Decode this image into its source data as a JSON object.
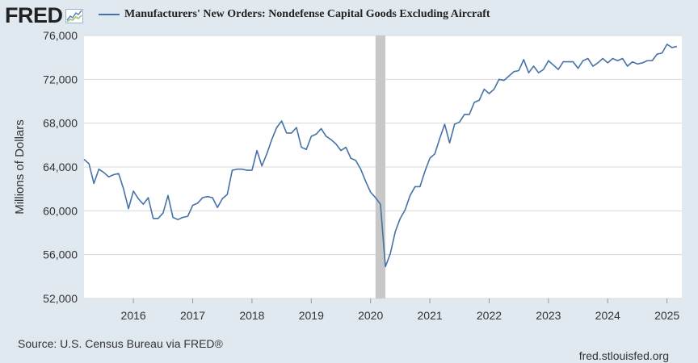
{
  "logo": {
    "text": "FRED",
    "icon": "fred-chart-icon"
  },
  "colors": {
    "series": "#4572a7",
    "recession": "#c8c8c8",
    "plot_bg": "#ffffff",
    "page_bg": "#e1e9f0"
  },
  "source": "Source: U.S. Census Bureau via FRED®",
  "site": "fred.stlouisfed.org",
  "chart_data": {
    "type": "line",
    "title": "",
    "xlabel": "",
    "ylabel": "Millions of Dollars",
    "ylim": [
      52000,
      76000
    ],
    "xlim": [
      2015.167,
      2025.25
    ],
    "grid": true,
    "legend": "top-left",
    "yticks": [
      52000,
      56000,
      60000,
      64000,
      68000,
      72000,
      76000
    ],
    "ytick_labels": [
      "52,000",
      "56,000",
      "60,000",
      "64,000",
      "68,000",
      "72,000",
      "76,000"
    ],
    "xticks": [
      2016,
      2017,
      2018,
      2019,
      2020,
      2021,
      2022,
      2023,
      2024,
      2025
    ],
    "xtick_labels": [
      "2016",
      "2017",
      "2018",
      "2019",
      "2020",
      "2021",
      "2022",
      "2023",
      "2024",
      "2025"
    ],
    "recessions": [
      {
        "start": 2020.083,
        "end": 2020.25
      }
    ],
    "series": [
      {
        "name": "Manufacturers' New Orders: Nondefense Capital Goods Excluding Aircraft",
        "start": 2015.167,
        "step": 0.08333,
        "values": [
          64700,
          64300,
          62500,
          63800,
          63500,
          63100,
          63300,
          63400,
          62000,
          60200,
          61800,
          61100,
          60600,
          61200,
          59300,
          59300,
          59800,
          61400,
          59400,
          59200,
          59400,
          59500,
          60500,
          60700,
          61200,
          61300,
          61200,
          60300,
          61100,
          61500,
          63700,
          63800,
          63800,
          63700,
          63700,
          65500,
          64100,
          65200,
          66500,
          67600,
          68200,
          67100,
          67100,
          67600,
          65800,
          65600,
          66800,
          67000,
          67500,
          66800,
          66500,
          66100,
          65500,
          65800,
          64800,
          64600,
          63800,
          62700,
          61700,
          61200,
          60600,
          54900,
          56100,
          58100,
          59300,
          60100,
          61400,
          62200,
          62200,
          63600,
          64800,
          65200,
          66600,
          67900,
          66200,
          67900,
          68100,
          68800,
          68800,
          69900,
          70100,
          71100,
          70700,
          71100,
          72000,
          71900,
          72300,
          72700,
          72800,
          73800,
          72600,
          73200,
          72600,
          72900,
          73700,
          73300,
          72900,
          73600,
          73600,
          73600,
          73000,
          73700,
          73900,
          73200,
          73500,
          73900,
          73500,
          73900,
          73700,
          73900,
          73200,
          73600,
          73400,
          73500,
          73700,
          73700,
          74300,
          74400,
          75200,
          74900,
          75000
        ]
      }
    ]
  }
}
